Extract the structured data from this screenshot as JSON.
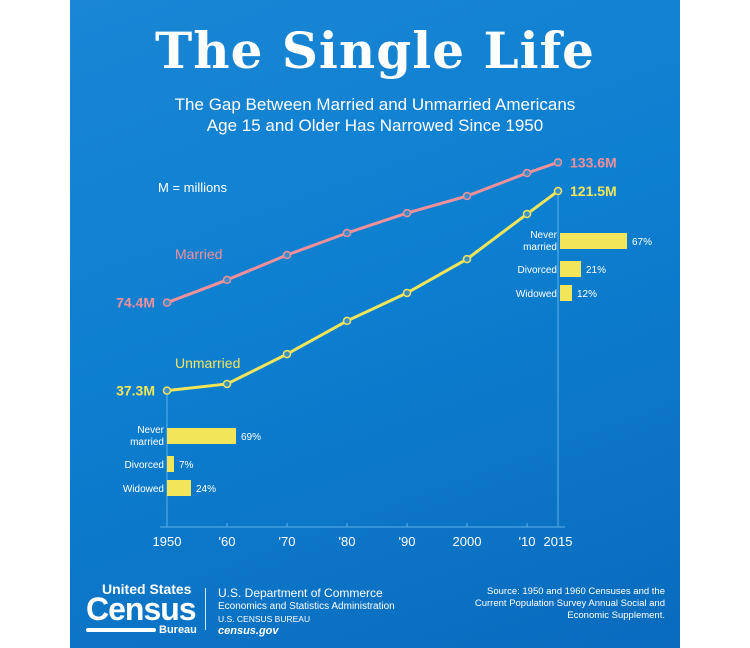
{
  "header": {
    "title": "The Single Life",
    "subtitle_line1": "The Gap Between Married and Unmarried Americans",
    "subtitle_line2": "Age 15 and Older Has Narrowed Since 1950"
  },
  "chart_data": {
    "type": "line",
    "unit_note": "M = millions",
    "x": [
      1950,
      1960,
      1970,
      1980,
      1990,
      2000,
      2010,
      2015
    ],
    "tick_labels": [
      "1950",
      "'60",
      "'70",
      "'80",
      "'90",
      "2000",
      "'10",
      "2015"
    ],
    "series": [
      {
        "name": "Married",
        "color": "#f0909a",
        "values": [
          74.4,
          84.0,
          94.5,
          103.8,
          112.2,
          119.4,
          129.1,
          133.6
        ],
        "start_label": "74.4M",
        "end_label": "133.6M"
      },
      {
        "name": "Unmarried",
        "color": "#f2e55a",
        "values": [
          37.3,
          40.1,
          52.7,
          66.7,
          78.5,
          92.8,
          111.8,
          121.5
        ],
        "start_label": "37.3M",
        "end_label": "121.5M"
      }
    ],
    "breakdown_1950": [
      {
        "label": [
          "Never",
          "married"
        ],
        "value": 69,
        "text": "69%"
      },
      {
        "label": [
          "Divorced"
        ],
        "value": 7,
        "text": "7%"
      },
      {
        "label": [
          "Widowed"
        ],
        "value": 24,
        "text": "24%"
      }
    ],
    "breakdown_2015": [
      {
        "label": [
          "Never",
          "married"
        ],
        "value": 67,
        "text": "67%"
      },
      {
        "label": [
          "Divorced"
        ],
        "value": 21,
        "text": "21%"
      },
      {
        "label": [
          "Widowed"
        ],
        "value": 12,
        "text": "12%"
      }
    ]
  },
  "footer": {
    "logo": {
      "line1": "United States",
      "line2": "Census",
      "line3": "Bureau"
    },
    "dept": "U.S. Department of Commerce",
    "admin": "Economics and Statistics Administration",
    "bureau": "U.S. CENSUS BUREAU",
    "site": "census.gov",
    "source": [
      "Source: 1950 and 1960 Censuses and the",
      "Current Population Survey Annual Social and",
      "Economic Supplement."
    ]
  }
}
